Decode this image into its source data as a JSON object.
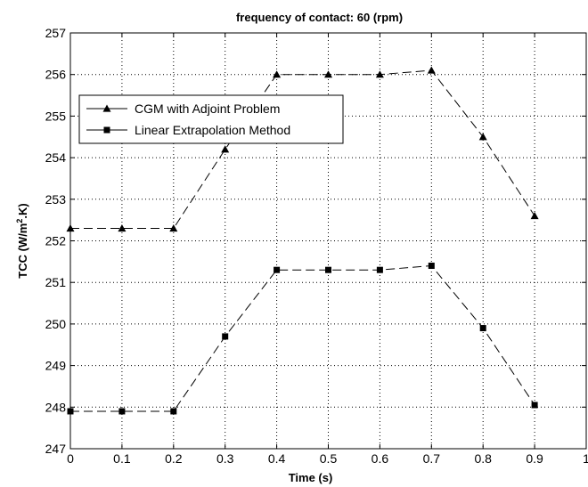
{
  "chart_data": {
    "type": "line",
    "title": "frequency of contact: 60 (rpm)",
    "xlabel": "Time (s)",
    "ylabel": "TCC (W/m².K)",
    "xlim": [
      0,
      1
    ],
    "ylim": [
      247,
      257
    ],
    "x_ticks": [
      0,
      0.1,
      0.2,
      0.3,
      0.4,
      0.5,
      0.6,
      0.7,
      0.8,
      0.9,
      1
    ],
    "x_tick_labels": [
      "0",
      "0.1",
      "0.2",
      "0.3",
      "0.4",
      "0.5",
      "0.6",
      "0.7",
      "0.8",
      "0.9",
      "1"
    ],
    "y_ticks": [
      247,
      248,
      249,
      250,
      251,
      252,
      253,
      254,
      255,
      256,
      257
    ],
    "y_tick_labels": [
      "247",
      "248",
      "249",
      "250",
      "251",
      "252",
      "253",
      "254",
      "255",
      "256",
      "257"
    ],
    "grid": true,
    "legend_position": "upper-left",
    "x": [
      0,
      0.1,
      0.2,
      0.3,
      0.4,
      0.5,
      0.6,
      0.7,
      0.8,
      0.9
    ],
    "series": [
      {
        "name": "CGM with Adjoint Problem",
        "marker": "triangle",
        "line_style": "dashed",
        "color": "#000000",
        "values": [
          252.3,
          252.3,
          252.3,
          254.2,
          256.0,
          256.0,
          256.0,
          256.1,
          254.5,
          252.6
        ]
      },
      {
        "name": "Linear Extrapolation Method",
        "marker": "square",
        "line_style": "dashed",
        "color": "#000000",
        "values": [
          247.9,
          247.9,
          247.9,
          249.7,
          251.3,
          251.3,
          251.3,
          251.4,
          249.9,
          248.05
        ]
      }
    ]
  }
}
